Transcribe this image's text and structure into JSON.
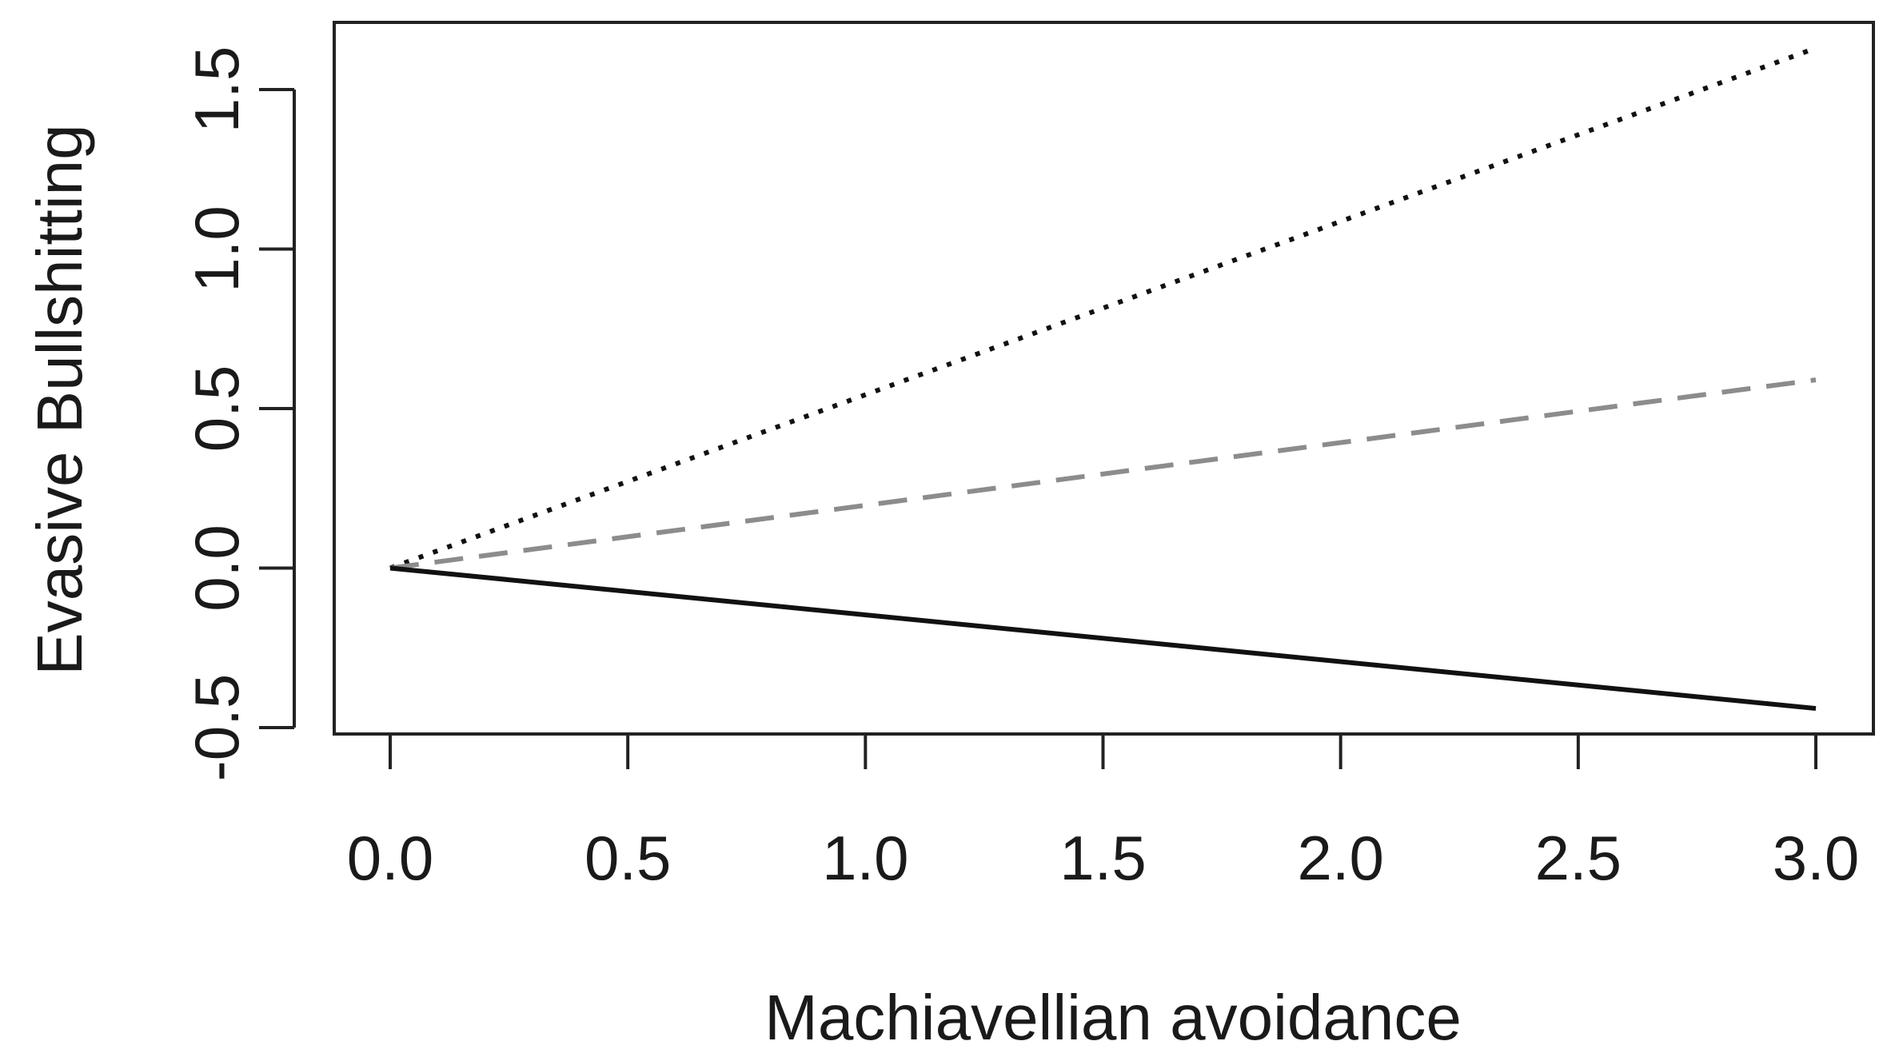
{
  "chart_data": {
    "type": "line",
    "title": "",
    "xlabel": "Machiavellian avoidance",
    "ylabel": "Evasive Bullshitting",
    "xlim": [
      0.0,
      3.0
    ],
    "ylim": [
      -0.5,
      1.5
    ],
    "x_ticks": [
      "0.0",
      "0.5",
      "1.0",
      "1.5",
      "2.0",
      "2.5",
      "3.0"
    ],
    "y_ticks": [
      "-0.5",
      "0.0",
      "0.5",
      "1.0",
      "1.5"
    ],
    "grid": false,
    "legend": "none",
    "series": [
      {
        "style": "dotted",
        "color": "#111111",
        "x": [
          0.0,
          3.0
        ],
        "y": [
          0.0,
          1.63
        ]
      },
      {
        "style": "dashed",
        "color": "#8c8c8c",
        "x": [
          0.0,
          3.0
        ],
        "y": [
          0.0,
          0.59
        ]
      },
      {
        "style": "solid",
        "color": "#111111",
        "x": [
          0.0,
          3.0
        ],
        "y": [
          0.0,
          -0.44
        ]
      }
    ]
  }
}
